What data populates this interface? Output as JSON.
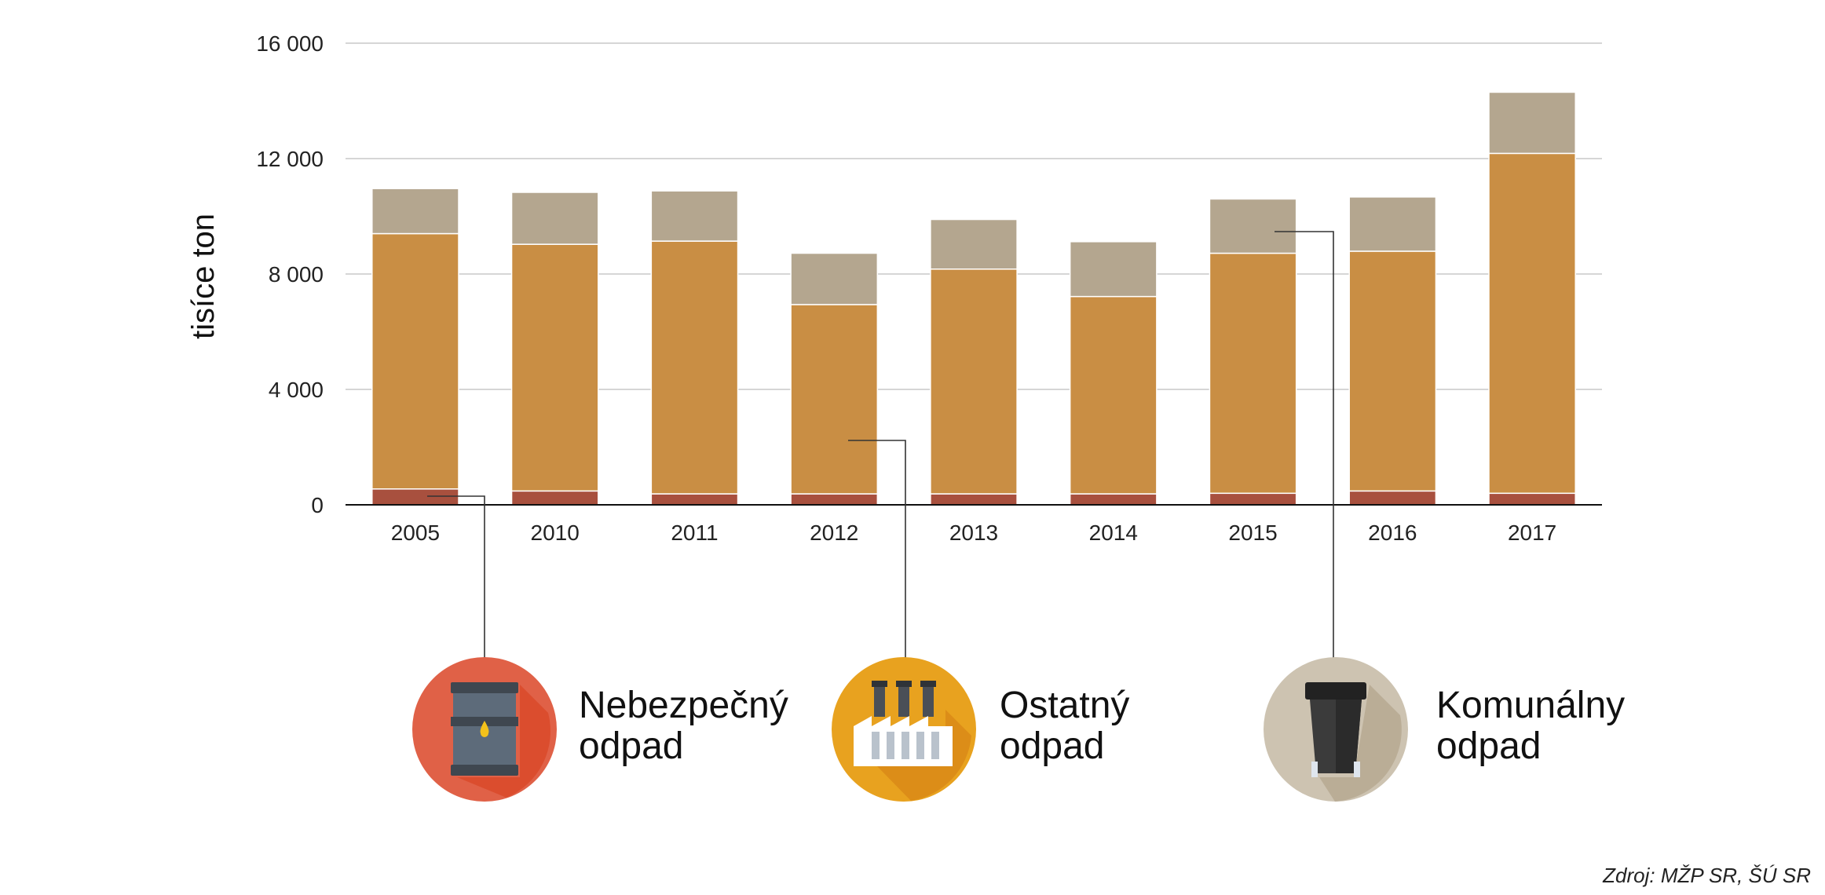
{
  "chart_data": {
    "type": "bar",
    "stacked": true,
    "categories": [
      "2005",
      "2010",
      "2011",
      "2012",
      "2013",
      "2014",
      "2015",
      "2016",
      "2017"
    ],
    "series": [
      {
        "name": "Nebezpečný odpad",
        "color": "#a8503e",
        "values": [
          550,
          480,
          380,
          380,
          380,
          380,
          400,
          480,
          400
        ]
      },
      {
        "name": "Ostatný odpad",
        "color": "#c98e44",
        "values": [
          8850,
          8550,
          8760,
          6560,
          7790,
          6840,
          8320,
          8310,
          11780
        ]
      },
      {
        "name": "Komunálny odpad",
        "color": "#b4a68f",
        "values": [
          1560,
          1800,
          1740,
          1780,
          1720,
          1900,
          1880,
          1880,
          2120
        ]
      }
    ],
    "ylabel": "tisíce ton",
    "ylim": [
      0,
      16000
    ],
    "yticks": [
      0,
      4000,
      8000,
      12000,
      16000
    ],
    "ytick_labels": [
      "0",
      "4 000",
      "8 000",
      "12 000",
      "16 000"
    ],
    "grid": true,
    "legend": {
      "placement": "bottom",
      "items": [
        {
          "line1": "Nebezpečný",
          "line2": "odpad",
          "icon": "oil-barrel-icon"
        },
        {
          "line1": "Ostatný",
          "line2": "odpad",
          "icon": "factory-icon"
        },
        {
          "line1": "Komunálny",
          "line2": "odpad",
          "icon": "trash-bin-icon"
        }
      ]
    },
    "source": "Zdroj: MŽP SR, ŠÚ SR"
  }
}
